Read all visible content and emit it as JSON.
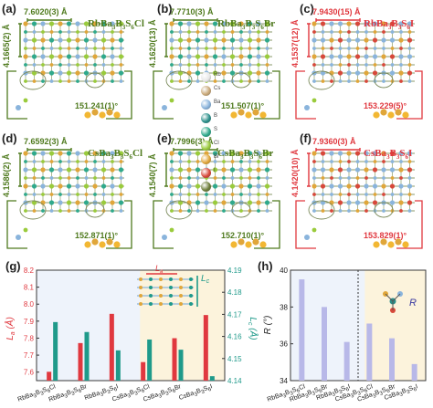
{
  "panels": [
    {
      "id": "a",
      "label": "(a)",
      "title": "RbBa3B3S6Cl",
      "title_parts": [
        "RbBa",
        "3",
        "B",
        "3",
        "S",
        "6",
        "Cl"
      ],
      "length_h": "7.6020(3) Å",
      "length_v": "4.1665(2) Å",
      "angle": "151.241(1)°",
      "color": "#4f7a1e"
    },
    {
      "id": "b",
      "label": "(b)",
      "title": "RbBa3B3S6Br",
      "title_parts": [
        "RbBa",
        "3",
        "B",
        "3",
        "S",
        "6",
        "Br"
      ],
      "length_h": "7.7710(3) Å",
      "length_v": "4.1620(13) Å",
      "angle": "151.507(1)°",
      "color": "#4f7a1e"
    },
    {
      "id": "c",
      "label": "(c)",
      "title": "RbBa3B3S6I",
      "title_parts": [
        "RbBa",
        "3",
        "B",
        "3",
        "S",
        "6",
        "I"
      ],
      "length_h": "7.9430(15) Å",
      "length_v": "4.1537(12) Å",
      "angle": "153.229(5)°",
      "color": "#e0383f"
    },
    {
      "id": "d",
      "label": "(d)",
      "title": "CsBa3B3S6Cl",
      "title_parts": [
        "CsBa",
        "3",
        "B",
        "3",
        "S",
        "6",
        "Cl"
      ],
      "length_h": "7.6592(3) Å",
      "length_v": "4.1586(2) Å",
      "angle": "152.871(1)°",
      "color": "#4f7a1e"
    },
    {
      "id": "e",
      "label": "(e)",
      "title": "CsBa3B3S6Br",
      "title_parts": [
        "CsBa",
        "3",
        "B",
        "3",
        "S",
        "6",
        "Br"
      ],
      "length_h": "7.7996(3) Å",
      "length_v": "4.1540(7) Å",
      "angle": "152.710(1)°",
      "color": "#4f7a1e"
    },
    {
      "id": "f",
      "label": "(f)",
      "title": "CsBa3B3S6I",
      "title_parts": [
        "CsBa",
        "3",
        "B",
        "3",
        "S",
        "6",
        "I"
      ],
      "length_h": "7.9360(3) Å",
      "length_v": "4.1420(10) Å",
      "angle": "153.829(1)°",
      "color": "#e0383f"
    }
  ],
  "legend": [
    {
      "symbol": "Rb",
      "color": "#e8e8e8"
    },
    {
      "symbol": "Cs",
      "color": "#c9a97a"
    },
    {
      "symbol": "Ba",
      "color": "#8ab4dc"
    },
    {
      "symbol": "B",
      "color": "#2b8f8a"
    },
    {
      "symbol": "S",
      "color": "#2fa98c"
    },
    {
      "symbol": "Cl",
      "color": "#9acb3c"
    },
    {
      "symbol": "Br",
      "color": "#e0a63a"
    },
    {
      "symbol": "I",
      "color": "#d7483a"
    },
    {
      "symbol": "",
      "color": "#6d7d3a"
    }
  ],
  "colors": {
    "green": "#4f7a1e",
    "red": "#e0383f",
    "bar_red": "#e0383f",
    "bar_teal": "#1f9a8a",
    "bar_lavender": "#b8b8e8",
    "frame": "#3a3a3a"
  },
  "chart_data": [
    {
      "id": "g",
      "label": "(g)",
      "type": "bar",
      "categories": [
        "RbBa3B3S6Cl",
        "RbBa3B3S6Br",
        "RbBa3B3S6I",
        "CsBa3B3S6Cl",
        "CsBa3B3S6Br",
        "CsBa3B3S6I"
      ],
      "category_parts": [
        [
          "RbBa",
          "3",
          "B",
          "3",
          "S",
          "6",
          "Cl"
        ],
        [
          "RbBa",
          "3",
          "B",
          "3",
          "S",
          "6",
          "Br"
        ],
        [
          "RbBa",
          "3",
          "B",
          "3",
          "S",
          "6",
          "I"
        ],
        [
          "CsBa",
          "3",
          "B",
          "3",
          "S",
          "6",
          "Cl"
        ],
        [
          "CsBa",
          "3",
          "B",
          "3",
          "S",
          "6",
          "Br"
        ],
        [
          "CsBa",
          "3",
          "B",
          "3",
          "S",
          "6",
          "I"
        ]
      ],
      "series": [
        {
          "name": "La",
          "axis": "left",
          "color": "#e0383f",
          "values": [
            7.602,
            7.771,
            7.943,
            7.659,
            7.7996,
            7.936
          ]
        },
        {
          "name": "Lc",
          "axis": "right",
          "color": "#1f9a8a",
          "values": [
            4.1665,
            4.162,
            4.1537,
            4.1586,
            4.154,
            4.142
          ]
        }
      ],
      "ylabel_left": "La (Å)",
      "ylabel_right": "Lc (Å)",
      "ylim_left": [
        7.55,
        8.2
      ],
      "ylim_right": [
        4.14,
        4.19
      ],
      "yticks_left": [
        "7.6",
        "7.7",
        "7.8",
        "7.9",
        "8.0",
        "8.1",
        "8.2"
      ],
      "yticks_right": [
        "4.14",
        "4.15",
        "4.16",
        "4.17",
        "4.18",
        "4.19"
      ],
      "inset_labels": {
        "la": "La",
        "lc": "Lc"
      }
    },
    {
      "id": "h",
      "label": "(h)",
      "type": "bar",
      "categories": [
        "RbBa3B3S6Cl",
        "RbBa3B3S6Br",
        "RbBa3B3S6I",
        "CsBa3B3S6Cl",
        "CsBa3B3S6Br",
        "CsBa3B3S6I"
      ],
      "category_parts": [
        [
          "RbBa",
          "3",
          "B",
          "3",
          "S",
          "6",
          "Cl"
        ],
        [
          "RbBa",
          "3",
          "B",
          "3",
          "S",
          "6",
          "Br"
        ],
        [
          "RbBa",
          "3",
          "B",
          "3",
          "S",
          "6",
          "I"
        ],
        [
          "CsBa",
          "3",
          "B",
          "3",
          "S",
          "6",
          "Cl"
        ],
        [
          "CsBa",
          "3",
          "B",
          "3",
          "S",
          "6",
          "Br"
        ],
        [
          "CsBa",
          "3",
          "B",
          "3",
          "S",
          "6",
          "I"
        ]
      ],
      "series": [
        {
          "name": "R",
          "color": "#b8b8e8",
          "values": [
            39.5,
            38.0,
            36.1,
            37.1,
            36.3,
            34.9
          ]
        }
      ],
      "ylabel": "R (°)",
      "ylim": [
        34,
        40
      ],
      "yticks": [
        "34",
        "36",
        "38",
        "40"
      ],
      "inset_label": "R"
    }
  ]
}
